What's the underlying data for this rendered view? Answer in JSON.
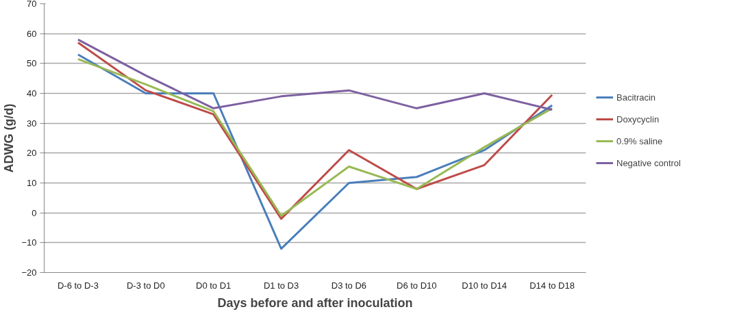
{
  "chart_data": {
    "type": "line",
    "xlabel": "Days before and after inoculation",
    "ylabel": "ADWG (g/d)",
    "categories": [
      "D-6 to D-3",
      "D-3 to D0",
      "D0 to D1",
      "D1 to D3",
      "D3 to D6",
      "D6 to D10",
      "D10 to D14",
      "D14 to D18"
    ],
    "series": [
      {
        "name": "Bacitracin",
        "color": "#4a7ebb",
        "values": [
          53,
          40,
          40,
          -12,
          10,
          12,
          21,
          36
        ]
      },
      {
        "name": "Doxycyclin",
        "color": "#be4b48",
        "values": [
          57,
          41,
          33,
          -2,
          21,
          8,
          16,
          39.5
        ]
      },
      {
        "name": "0.9% saline",
        "color": "#98b954",
        "values": [
          51.5,
          43,
          34,
          -1,
          15.5,
          8,
          22,
          35
        ]
      },
      {
        "name": "Negative control",
        "color": "#7d60a0",
        "values": [
          58,
          46,
          35,
          39,
          41,
          35,
          40,
          34.5
        ]
      }
    ],
    "ylim": [
      -20,
      70
    ],
    "yticks": [
      -20,
      -10,
      0,
      10,
      20,
      30,
      40,
      50,
      60,
      70
    ],
    "grid": "y",
    "legend": "right",
    "marker": "none",
    "line_style": "solid"
  }
}
